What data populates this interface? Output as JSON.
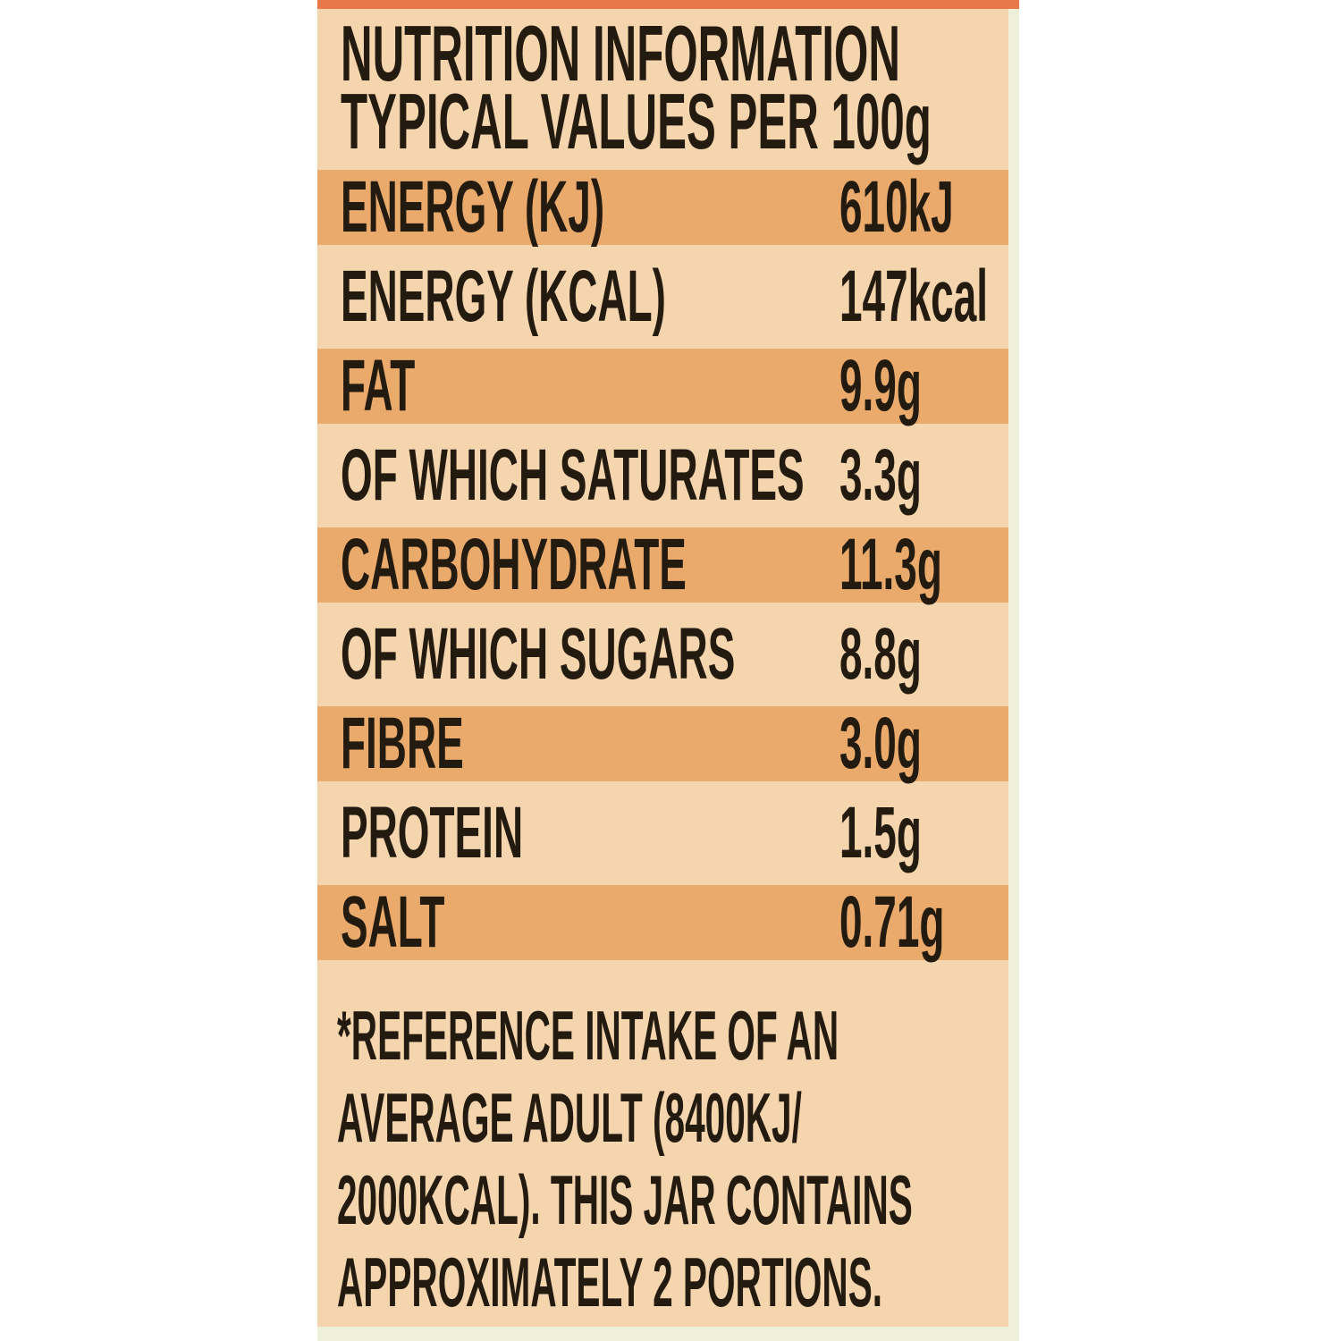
{
  "panel": {
    "title_line1": "NUTRITION INFORMATION",
    "title_line2": "TYPICAL VALUES PER 100g",
    "rows": [
      {
        "name": "ENERGY (KJ)",
        "value": "610kJ"
      },
      {
        "name": "ENERGY (KCAL)",
        "value": "147kcal"
      },
      {
        "name": "FAT",
        "value": "9.9g"
      },
      {
        "name": "OF WHICH SATURATES",
        "value": "3.3g"
      },
      {
        "name": "CARBOHYDRATE",
        "value": "11.3g"
      },
      {
        "name": "OF WHICH SUGARS",
        "value": "8.8g"
      },
      {
        "name": "FIBRE",
        "value": "3.0g"
      },
      {
        "name": "PROTEIN",
        "value": "1.5g"
      },
      {
        "name": "SALT",
        "value": "0.71g"
      }
    ],
    "footnote_lines": [
      "*REFERENCE INTAKE OF AN",
      "AVERAGE ADULT (8400KJ/",
      "2000KCAL). THIS JAR CONTAINS",
      "APPROXIMATELY 2 PORTIONS."
    ],
    "colors": {
      "base": "#f5d5ae",
      "band_dark": "#e9aa6c",
      "top_strip": "#e8784a",
      "edge_strip": "#eff0da",
      "text": "#231b10"
    }
  }
}
